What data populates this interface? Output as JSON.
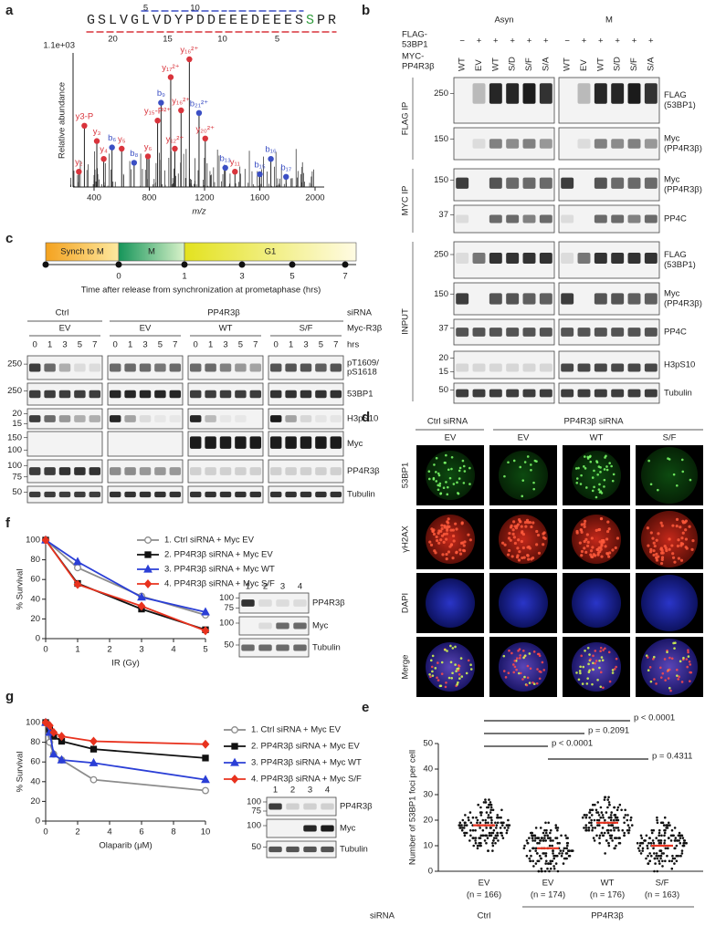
{
  "panel_labels": [
    "a",
    "b",
    "c",
    "d",
    "e",
    "f",
    "g"
  ],
  "a": {
    "sequence_start": "GSLVGLVDYPDDEEEDEEES",
    "phospho_site": "S",
    "sequence_end": "PR",
    "top_positions": [
      5,
      10
    ],
    "bottom_positions": [
      20,
      15,
      10,
      5
    ],
    "scale": "1.1e+03",
    "ylabel": "Relative abundance",
    "xlabel": "m/z",
    "xticks": [
      400,
      800,
      1200,
      1600,
      2000
    ],
    "ions": [
      "y₂",
      "y3-P",
      "y₃",
      "y₄",
      "b₆",
      "y₅",
      "b₈",
      "y₆",
      "b₉",
      "y₁₅-P²⁺",
      "y₁₇²⁺",
      "y₁₆²⁺",
      "y₁₆²⁺",
      "b₂₁²⁺",
      "y₁₂²⁺",
      "y₂₀²⁺",
      "b₁₃",
      "y₁₁",
      "b₁₅",
      "b₁₆",
      "b₁₇"
    ]
  },
  "b": {
    "conditions": [
      "Asyn",
      "M"
    ],
    "flag_label": [
      "FLAG-",
      "53BP1"
    ],
    "myc_label": [
      "MYC-",
      "PP4R3β"
    ],
    "flag_signs": [
      "−",
      "+",
      "+",
      "+",
      "+",
      "+"
    ],
    "myc_lanes": [
      "WT",
      "EV",
      "WT",
      "S/D",
      "S/F",
      "S/A"
    ],
    "sections": [
      "FLAG IP",
      "MYC IP",
      "INPUT"
    ],
    "blots": [
      {
        "label": [
          "FLAG",
          "(53BP1)"
        ],
        "mw": [
          250
        ]
      },
      {
        "label": [
          "Myc",
          "(PP4R3β)"
        ],
        "mw": [
          150
        ]
      },
      {
        "label": [
          "Myc",
          "(PP4R3β)"
        ],
        "mw": [
          150
        ]
      },
      {
        "label": [
          "PP4C"
        ],
        "mw": [
          37
        ]
      },
      {
        "label": [
          "FLAG",
          "(53BP1)"
        ],
        "mw": [
          250
        ]
      },
      {
        "label": [
          "Myc",
          "(PP4R3β)"
        ],
        "mw": [
          150
        ]
      },
      {
        "label": [
          "PP4C"
        ],
        "mw": [
          37
        ]
      },
      {
        "label": [
          "H3pS10"
        ],
        "mw": [
          20,
          15
        ]
      },
      {
        "label": [
          "Tubulin"
        ],
        "mw": [
          50
        ]
      }
    ]
  },
  "c": {
    "timeline": [
      "Synch to M",
      "M",
      "G1"
    ],
    "time_ticks": [
      0,
      1,
      3,
      5,
      7
    ],
    "time_caption": "Time after release from synchronization at prometaphase (hrs)",
    "sirna_row": [
      "Ctrl",
      "PP4R3β",
      "siRNA"
    ],
    "myc_row": [
      "EV",
      "EV",
      "WT",
      "S/F",
      "Myc-R3β"
    ],
    "hrs": [
      0,
      1,
      3,
      5,
      7
    ],
    "hrs_label": "hrs",
    "blots": [
      {
        "label": [
          "pT1609/",
          "pS1618"
        ],
        "mw": [
          250
        ]
      },
      {
        "label": [
          "53BP1"
        ],
        "mw": [
          250
        ]
      },
      {
        "label": [
          "H3pS10"
        ],
        "mw": [
          20,
          15
        ]
      },
      {
        "label": [
          "Myc"
        ],
        "mw": [
          150,
          100
        ]
      },
      {
        "label": [
          "PP4R3β"
        ],
        "mw": [
          100,
          75
        ]
      },
      {
        "label": [
          "Tubulin"
        ],
        "mw": [
          50
        ]
      }
    ]
  },
  "d": {
    "sirna": [
      "Ctrl siRNA",
      "PP4R3β siRNA"
    ],
    "columns": [
      "EV",
      "EV",
      "WT",
      "S/F"
    ],
    "rows": [
      "53BP1",
      "γH2AX",
      "DAPI",
      "Merge"
    ]
  },
  "f_blot": {
    "lanes": [
      1,
      2,
      3,
      4
    ],
    "rows": [
      {
        "label": "PP4R3β",
        "mw": [
          100,
          75
        ]
      },
      {
        "label": "Myc",
        "mw": [
          100
        ]
      },
      {
        "label": "Tubulin",
        "mw": [
          50
        ]
      }
    ]
  },
  "g_blot": {
    "lanes": [
      1,
      2,
      3,
      4
    ],
    "rows": [
      {
        "label": "PP4R3β",
        "mw": [
          100,
          75
        ]
      },
      {
        "label": "Myc",
        "mw": [
          100
        ]
      },
      {
        "label": "Tubulin",
        "mw": [
          50
        ]
      }
    ]
  },
  "chart_data": [
    {
      "type": "line",
      "xlabel": "IR (Gy)",
      "ylabel": "% Survival",
      "x": [
        0,
        1,
        3,
        5
      ],
      "xlim": [
        0,
        5
      ],
      "xticks": [
        0,
        1,
        2,
        3,
        4,
        5
      ],
      "ylim": [
        0,
        100
      ],
      "yticks": [
        0,
        20,
        40,
        60,
        80,
        100
      ],
      "series": [
        {
          "name": "1. Ctrl siRNA + Myc EV",
          "color": "#8c8c8c",
          "marker": "circle",
          "values": [
            100,
            72,
            43,
            24
          ]
        },
        {
          "name": "2. PP4R3β siRNA + Myc EV",
          "color": "#111111",
          "marker": "square",
          "values": [
            100,
            56,
            30,
            9
          ]
        },
        {
          "name": "3. PP4R3β siRNA + Myc WT",
          "color": "#2b3fd6",
          "marker": "triangle",
          "values": [
            100,
            78,
            42,
            27
          ]
        },
        {
          "name": "4. PP4R3β siRNA + Myc S/F",
          "color": "#e8321e",
          "marker": "diamond",
          "values": [
            100,
            55,
            33,
            8
          ]
        }
      ]
    },
    {
      "type": "line",
      "xlabel": "Olaparib (μM)",
      "ylabel": "% Survival",
      "x": [
        0,
        0.25,
        0.5,
        1,
        3,
        10
      ],
      "xlim": [
        0,
        10
      ],
      "xticks": [
        0,
        2,
        4,
        6,
        8,
        10
      ],
      "ylim": [
        0,
        100
      ],
      "yticks": [
        0,
        20,
        40,
        60,
        80,
        100
      ],
      "series": [
        {
          "name": "1. Ctrl siRNA + Myc EV",
          "color": "#8c8c8c",
          "marker": "circle",
          "values": [
            100,
            80,
            68,
            62,
            42,
            31
          ]
        },
        {
          "name": "2. PP4R3β siRNA + Myc EV",
          "color": "#111111",
          "marker": "square",
          "values": [
            100,
            93,
            86,
            81,
            73,
            64
          ]
        },
        {
          "name": "3. PP4R3β siRNA + Myc WT",
          "color": "#2b3fd6",
          "marker": "triangle",
          "values": [
            100,
            90,
            68,
            62,
            59,
            42
          ]
        },
        {
          "name": "4. PP4R3β siRNA + Myc S/F",
          "color": "#e8321e",
          "marker": "diamond",
          "values": [
            100,
            97,
            90,
            86,
            81,
            78
          ]
        }
      ]
    },
    {
      "type": "dot",
      "ylabel": "Number of 53BP1 foci per cell",
      "categories": [
        "EV",
        "EV",
        "WT",
        "S/F"
      ],
      "values": [
        18,
        9,
        19,
        10
      ],
      "color": "#e8321e",
      "ylim": [
        0,
        50
      ],
      "yticks": [
        0,
        10,
        20,
        30,
        40,
        50
      ],
      "n_labels": [
        "(n = 166)",
        "(n = 174)",
        "(n = 176)",
        "(n = 163)"
      ],
      "p_values": [
        "p < 0.0001",
        "p = 0.2091",
        "p < 0.0001",
        "p = 0.4311"
      ],
      "group_title": "siRNA",
      "groups": [
        "Ctrl",
        "PP4R3β"
      ]
    }
  ]
}
